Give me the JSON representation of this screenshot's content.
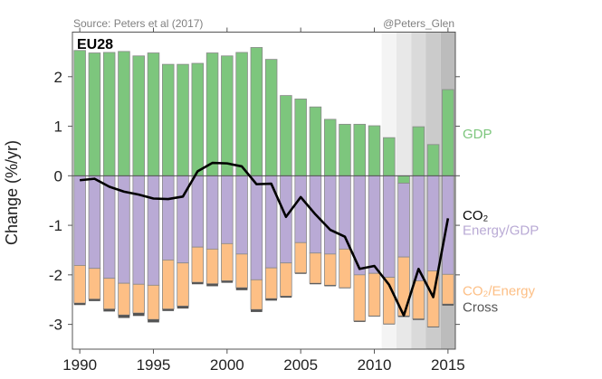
{
  "chart_data": {
    "type": "bar",
    "title": "EU28",
    "source": "Source: Peters et al (2017)",
    "credit": "@Peters_Glen",
    "xlabel": "",
    "ylabel": "Change (%/yr)",
    "xlim": [
      1989.5,
      2015.5
    ],
    "ylim": [
      -3.5,
      2.9
    ],
    "x_ticks": [
      1990,
      1995,
      2000,
      2005,
      2010,
      2015
    ],
    "y_ticks": [
      2,
      1,
      0,
      -1,
      -2,
      -3
    ],
    "shaded_projection_years": [
      2011,
      2012,
      2013,
      2014,
      2015
    ],
    "shade_colors": [
      "#f4f4f4",
      "#e8e8e8",
      "#dadada",
      "#cbcbcb",
      "#bcbcbc"
    ],
    "years": [
      1990,
      1991,
      1992,
      1993,
      1994,
      1995,
      1996,
      1997,
      1998,
      1999,
      2000,
      2001,
      2002,
      2003,
      2004,
      2005,
      2006,
      2007,
      2008,
      2009,
      2010,
      2011,
      2012,
      2013,
      2014,
      2015
    ],
    "series": [
      {
        "name": "GDP",
        "kind": "bar",
        "color": "#7dc67d",
        "values": [
          2.53,
          2.48,
          2.49,
          2.51,
          2.42,
          2.48,
          2.25,
          2.25,
          2.27,
          2.48,
          2.42,
          2.49,
          2.59,
          2.35,
          1.62,
          1.55,
          1.39,
          1.14,
          1.04,
          1.04,
          1.01,
          0.77,
          -0.15,
          0.99,
          0.63,
          1.74
        ]
      },
      {
        "name": "Energy/GDP",
        "kind": "bar",
        "color": "#b9aad5",
        "values": [
          -1.81,
          -1.87,
          -2.07,
          -2.17,
          -2.19,
          -2.21,
          -1.7,
          -1.76,
          -1.44,
          -1.48,
          -1.37,
          -1.58,
          -2.1,
          -1.86,
          -1.76,
          -1.35,
          -1.56,
          -1.58,
          -1.48,
          -2.0,
          -1.97,
          -2.05,
          -1.49,
          -2.12,
          -1.92,
          -1.99
        ]
      },
      {
        "name": "CO2/Energy",
        "kind": "bar",
        "color": "#fdbf85",
        "values": [
          -0.76,
          -0.62,
          -0.62,
          -0.64,
          -0.58,
          -0.69,
          -0.99,
          -0.87,
          -0.71,
          -0.7,
          -0.75,
          -0.68,
          -0.6,
          -0.62,
          -0.67,
          -0.61,
          -0.61,
          -0.63,
          -0.78,
          -0.93,
          -0.86,
          -0.94,
          -1.19,
          -0.77,
          -1.13,
          -0.6
        ]
      },
      {
        "name": "Cross",
        "kind": "bar",
        "color": "#555555",
        "values": [
          -0.04,
          -0.04,
          -0.05,
          -0.06,
          -0.06,
          -0.06,
          -0.04,
          -0.05,
          -0.04,
          -0.05,
          -0.04,
          -0.05,
          -0.05,
          -0.04,
          -0.03,
          -0.02,
          -0.02,
          -0.02,
          -0.01,
          -0.02,
          -0.01,
          -0.01,
          -0.02,
          -0.02,
          -0.01,
          -0.03
        ]
      },
      {
        "name": "CO2",
        "kind": "line",
        "color": "#000000",
        "values": [
          -0.09,
          -0.06,
          -0.22,
          -0.32,
          -0.38,
          -0.46,
          -0.47,
          -0.42,
          0.09,
          0.26,
          0.25,
          0.19,
          -0.17,
          -0.16,
          -0.83,
          -0.43,
          -0.78,
          -1.09,
          -1.23,
          -1.88,
          -1.82,
          -2.2,
          -2.82,
          -1.88,
          -2.45,
          -0.86
        ]
      }
    ],
    "legend": [
      {
        "label": "GDP",
        "color": "#7dc67d",
        "at_value": 0.85
      },
      {
        "label": "CO₂",
        "color": "#000000",
        "at_value": -0.8
      },
      {
        "label": "Energy/GDP",
        "color": "#b9aad5",
        "at_value": -1.1
      },
      {
        "label": "CO₂/Energy",
        "color": "#fdbf85",
        "at_value": -2.32
      },
      {
        "label": "Cross",
        "color": "#555555",
        "at_value": -2.65
      }
    ],
    "legend_placement": "right",
    "grid": false
  }
}
